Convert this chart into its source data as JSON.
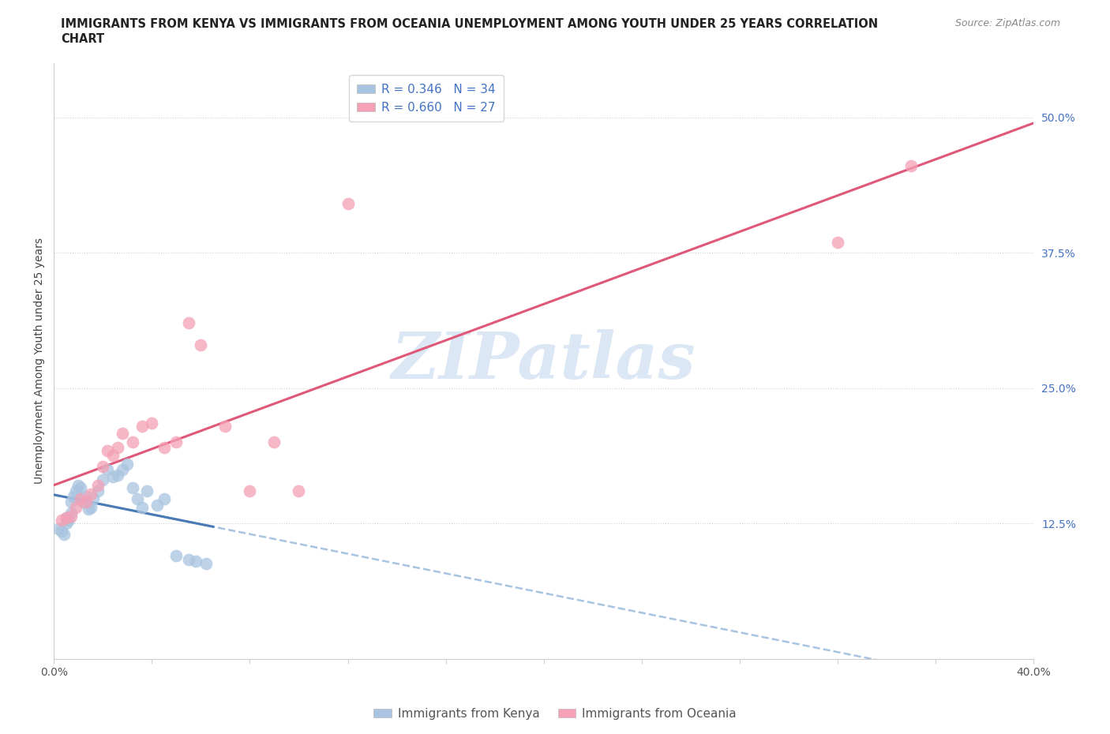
{
  "title_line1": "IMMIGRANTS FROM KENYA VS IMMIGRANTS FROM OCEANIA UNEMPLOYMENT AMONG YOUTH UNDER 25 YEARS CORRELATION",
  "title_line2": "CHART",
  "source": "Source: ZipAtlas.com",
  "ylabel": "Unemployment Among Youth under 25 years",
  "kenya_R": 0.346,
  "kenya_N": 34,
  "oceania_R": 0.66,
  "oceania_N": 27,
  "kenya_color": "#a8c4e0",
  "oceania_color": "#f4a0b5",
  "kenya_line_color": "#4a7ab5",
  "oceania_line_color": "#e05878",
  "xlim": [
    0.0,
    0.4
  ],
  "ylim": [
    0.0,
    0.55
  ],
  "xticks": [
    0.0,
    0.04,
    0.08,
    0.12,
    0.16,
    0.2,
    0.24,
    0.28,
    0.32,
    0.36,
    0.4
  ],
  "xtick_labels": [
    "0.0%",
    "",
    "",
    "",
    "",
    "",
    "",
    "",
    "",
    "",
    "40.0%"
  ],
  "yticks_right": [
    0.125,
    0.25,
    0.375,
    0.5
  ],
  "ytick_labels_right": [
    "12.5%",
    "25.0%",
    "37.5%",
    "50.0%"
  ],
  "watermark": "ZIPatlas",
  "watermark_color": "#c0d4ee",
  "kenya_x": [
    0.002,
    0.003,
    0.004,
    0.005,
    0.005,
    0.006,
    0.007,
    0.007,
    0.008,
    0.009,
    0.01,
    0.011,
    0.012,
    0.013,
    0.014,
    0.015,
    0.016,
    0.018,
    0.02,
    0.022,
    0.024,
    0.026,
    0.028,
    0.03,
    0.032,
    0.034,
    0.036,
    0.038,
    0.042,
    0.045,
    0.05,
    0.055,
    0.058,
    0.062
  ],
  "kenya_y": [
    0.12,
    0.118,
    0.115,
    0.125,
    0.13,
    0.128,
    0.135,
    0.145,
    0.15,
    0.155,
    0.16,
    0.158,
    0.145,
    0.15,
    0.138,
    0.14,
    0.148,
    0.155,
    0.165,
    0.175,
    0.168,
    0.17,
    0.175,
    0.18,
    0.158,
    0.148,
    0.14,
    0.155,
    0.142,
    0.148,
    0.095,
    0.092,
    0.09,
    0.088
  ],
  "oceania_x": [
    0.003,
    0.005,
    0.007,
    0.009,
    0.011,
    0.013,
    0.015,
    0.018,
    0.02,
    0.022,
    0.024,
    0.026,
    0.028,
    0.032,
    0.036,
    0.04,
    0.045,
    0.05,
    0.055,
    0.06,
    0.07,
    0.08,
    0.09,
    0.1,
    0.12,
    0.32,
    0.35
  ],
  "oceania_y": [
    0.128,
    0.13,
    0.132,
    0.14,
    0.148,
    0.145,
    0.152,
    0.16,
    0.178,
    0.192,
    0.188,
    0.195,
    0.208,
    0.2,
    0.215,
    0.218,
    0.195,
    0.2,
    0.31,
    0.29,
    0.215,
    0.155,
    0.2,
    0.155,
    0.42,
    0.385,
    0.455
  ],
  "title_fontsize": 10.5,
  "source_fontsize": 9,
  "axis_label_fontsize": 10,
  "tick_fontsize": 10,
  "legend_fontsize": 11,
  "watermark_fontsize": 60,
  "background_color": "#ffffff",
  "grid_color": "#d0d0d0",
  "axis_color": "#cccccc",
  "right_tick_color": "#4472c4",
  "bottom_legend_color": "#555555"
}
